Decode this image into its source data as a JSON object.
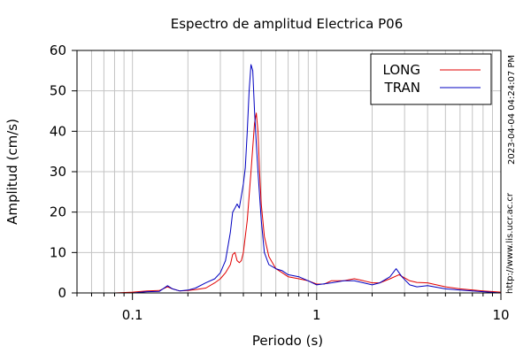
{
  "chart_data": {
    "type": "line",
    "title": "Espectro de amplitud Electrica P06",
    "xlabel": "Periodo (s)",
    "ylabel": "Amplitud (cm/s)",
    "xscale": "log",
    "xlim": [
      0.05,
      10
    ],
    "ylim": [
      0,
      60
    ],
    "yticks": [
      0,
      10,
      20,
      30,
      40,
      50,
      60
    ],
    "xticks": [
      {
        "value": 0.1,
        "label": "0.1"
      },
      {
        "value": 1,
        "label": "1"
      },
      {
        "value": 10,
        "label": "10"
      }
    ],
    "grid": true,
    "legend_position": "top-right",
    "series": [
      {
        "name": "LONG",
        "color": "#e00000",
        "points": [
          [
            0.05,
            0
          ],
          [
            0.08,
            0
          ],
          [
            0.1,
            0.2
          ],
          [
            0.12,
            0.5
          ],
          [
            0.14,
            0.6
          ],
          [
            0.155,
            1.5
          ],
          [
            0.165,
            1.0
          ],
          [
            0.18,
            0.5
          ],
          [
            0.2,
            0.6
          ],
          [
            0.22,
            0.8
          ],
          [
            0.25,
            1.2
          ],
          [
            0.28,
            2.5
          ],
          [
            0.3,
            3.5
          ],
          [
            0.32,
            5
          ],
          [
            0.34,
            7
          ],
          [
            0.35,
            9.5
          ],
          [
            0.36,
            10
          ],
          [
            0.37,
            8
          ],
          [
            0.38,
            7.5
          ],
          [
            0.39,
            8
          ],
          [
            0.4,
            10
          ],
          [
            0.42,
            18
          ],
          [
            0.43,
            24
          ],
          [
            0.44,
            30
          ],
          [
            0.45,
            36
          ],
          [
            0.46,
            42
          ],
          [
            0.47,
            44.5
          ],
          [
            0.48,
            40
          ],
          [
            0.49,
            30
          ],
          [
            0.5,
            22
          ],
          [
            0.52,
            14
          ],
          [
            0.55,
            9
          ],
          [
            0.6,
            6
          ],
          [
            0.65,
            5
          ],
          [
            0.7,
            4
          ],
          [
            0.8,
            3.5
          ],
          [
            0.9,
            3
          ],
          [
            1,
            2.2
          ],
          [
            1.1,
            2.2
          ],
          [
            1.2,
            3
          ],
          [
            1.4,
            3
          ],
          [
            1.6,
            3.5
          ],
          [
            1.8,
            3
          ],
          [
            2,
            2.5
          ],
          [
            2.2,
            2.5
          ],
          [
            2.5,
            3.5
          ],
          [
            2.8,
            4.5
          ],
          [
            3.2,
            3
          ],
          [
            3.5,
            2.6
          ],
          [
            4,
            2.5
          ],
          [
            5,
            1.5
          ],
          [
            6,
            1
          ],
          [
            8,
            0.5
          ],
          [
            10,
            0.2
          ]
        ]
      },
      {
        "name": "TRAN",
        "color": "#0000c0",
        "points": [
          [
            0.05,
            0
          ],
          [
            0.08,
            0
          ],
          [
            0.1,
            0
          ],
          [
            0.12,
            0.3
          ],
          [
            0.14,
            0.4
          ],
          [
            0.155,
            1.8
          ],
          [
            0.165,
            1.0
          ],
          [
            0.18,
            0.5
          ],
          [
            0.2,
            0.7
          ],
          [
            0.22,
            1.2
          ],
          [
            0.25,
            2.5
          ],
          [
            0.28,
            3.5
          ],
          [
            0.3,
            5
          ],
          [
            0.32,
            8
          ],
          [
            0.34,
            15
          ],
          [
            0.35,
            20
          ],
          [
            0.36,
            21
          ],
          [
            0.37,
            22
          ],
          [
            0.38,
            21
          ],
          [
            0.39,
            24
          ],
          [
            0.4,
            27
          ],
          [
            0.41,
            31
          ],
          [
            0.42,
            40
          ],
          [
            0.43,
            50
          ],
          [
            0.44,
            56.5
          ],
          [
            0.45,
            55
          ],
          [
            0.46,
            45
          ],
          [
            0.47,
            37
          ],
          [
            0.48,
            30
          ],
          [
            0.5,
            18
          ],
          [
            0.52,
            10
          ],
          [
            0.55,
            7
          ],
          [
            0.6,
            6
          ],
          [
            0.65,
            5.5
          ],
          [
            0.7,
            4.5
          ],
          [
            0.8,
            4
          ],
          [
            0.9,
            3
          ],
          [
            1,
            2
          ],
          [
            1.2,
            2.5
          ],
          [
            1.4,
            3
          ],
          [
            1.6,
            3
          ],
          [
            1.8,
            2.5
          ],
          [
            2,
            2
          ],
          [
            2.2,
            2.5
          ],
          [
            2.5,
            4
          ],
          [
            2.7,
            6
          ],
          [
            2.9,
            4
          ],
          [
            3.2,
            2
          ],
          [
            3.5,
            1.5
          ],
          [
            4,
            1.8
          ],
          [
            5,
            1
          ],
          [
            6,
            0.7
          ],
          [
            8,
            0.3
          ],
          [
            10,
            0
          ]
        ]
      }
    ]
  },
  "side_labels": {
    "timestamp": "2023-04-04 04:24:07 PM",
    "url": "http://www.lis.ucr.ac.cr"
  }
}
